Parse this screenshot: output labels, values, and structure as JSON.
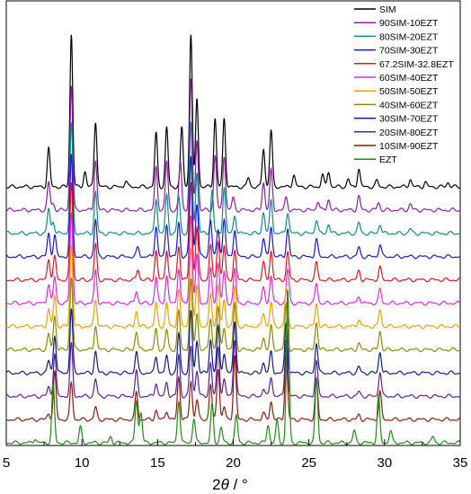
{
  "chart_data": {
    "type": "line",
    "title": "",
    "xlabel_main": "2",
    "xlabel_theta": "θ",
    "xlabel_rest": " / °",
    "ylabel": "",
    "xlim": [
      5,
      35
    ],
    "xticks": [
      "5",
      "10",
      "15",
      "20",
      "25",
      "30",
      "35"
    ],
    "grid": false,
    "legend_position": "top-right",
    "stacked_offset": true,
    "series": [
      {
        "name": "SIM",
        "color": "#000000",
        "peaks": [
          [
            7.8,
            25
          ],
          [
            9.3,
            100
          ],
          [
            10.2,
            10
          ],
          [
            10.9,
            43
          ],
          [
            12.9,
            4
          ],
          [
            14.9,
            35
          ],
          [
            15.6,
            39
          ],
          [
            16.6,
            39
          ],
          [
            17.2,
            100
          ],
          [
            17.6,
            58
          ],
          [
            18.8,
            45
          ],
          [
            19.4,
            45
          ],
          [
            21.0,
            6
          ],
          [
            22.0,
            25
          ],
          [
            22.5,
            37
          ],
          [
            24.0,
            8
          ],
          [
            25.9,
            8
          ],
          [
            26.3,
            10
          ],
          [
            27.6,
            5
          ],
          [
            28.3,
            12
          ],
          [
            29.5,
            4
          ],
          [
            31.7,
            5
          ],
          [
            32.7,
            3
          ],
          [
            34.2,
            3
          ]
        ]
      },
      {
        "name": "90SIM-10EZT",
        "color": "#8b1fa0",
        "peaks": [
          [
            7.8,
            18
          ],
          [
            8.1,
            4
          ],
          [
            9.3,
            82
          ],
          [
            10.9,
            33
          ],
          [
            14.9,
            28
          ],
          [
            15.6,
            32
          ],
          [
            16.5,
            32
          ],
          [
            17.2,
            85
          ],
          [
            17.6,
            46
          ],
          [
            18.8,
            36
          ],
          [
            19.4,
            36
          ],
          [
            20.0,
            8
          ],
          [
            22.0,
            18
          ],
          [
            22.5,
            26
          ],
          [
            23.5,
            8
          ],
          [
            25.6,
            6
          ],
          [
            26.3,
            7
          ],
          [
            28.3,
            9
          ],
          [
            29.6,
            5
          ],
          [
            31.7,
            4
          ]
        ]
      },
      {
        "name": "80SIM-20EZT",
        "color": "#0f8a8a",
        "peaks": [
          [
            7.8,
            16
          ],
          [
            8.1,
            8
          ],
          [
            9.3,
            72
          ],
          [
            10.9,
            27
          ],
          [
            14.9,
            23
          ],
          [
            15.6,
            25
          ],
          [
            16.4,
            24
          ],
          [
            17.2,
            72
          ],
          [
            17.6,
            40
          ],
          [
            18.6,
            28
          ],
          [
            19.4,
            30
          ],
          [
            20.1,
            12
          ],
          [
            22.0,
            14
          ],
          [
            22.5,
            22
          ],
          [
            23.6,
            14
          ],
          [
            25.5,
            9
          ],
          [
            26.3,
            6
          ],
          [
            28.3,
            7
          ],
          [
            29.7,
            6
          ],
          [
            31.7,
            3
          ]
        ]
      },
      {
        "name": "70SIM-30EZT",
        "color": "#1a14d8",
        "peaks": [
          [
            7.8,
            15
          ],
          [
            8.2,
            14
          ],
          [
            9.3,
            66
          ],
          [
            10.9,
            24
          ],
          [
            13.7,
            6
          ],
          [
            14.9,
            20
          ],
          [
            15.6,
            21
          ],
          [
            16.4,
            22
          ],
          [
            17.2,
            66
          ],
          [
            17.6,
            35
          ],
          [
            18.5,
            24
          ],
          [
            19.0,
            18
          ],
          [
            19.4,
            24
          ],
          [
            20.1,
            18
          ],
          [
            22.0,
            12
          ],
          [
            22.5,
            20
          ],
          [
            23.6,
            18
          ],
          [
            25.5,
            11
          ],
          [
            28.3,
            6
          ],
          [
            29.7,
            8
          ]
        ]
      },
      {
        "name": "67.2SIM-32.8EZT",
        "color": "#e8141e",
        "peaks": [
          [
            7.8,
            14
          ],
          [
            8.2,
            15
          ],
          [
            9.3,
            64
          ],
          [
            10.9,
            23
          ],
          [
            13.7,
            7
          ],
          [
            14.9,
            19
          ],
          [
            15.6,
            20
          ],
          [
            16.4,
            22
          ],
          [
            17.2,
            64
          ],
          [
            17.6,
            34
          ],
          [
            18.5,
            23
          ],
          [
            19.0,
            26
          ],
          [
            19.4,
            22
          ],
          [
            20.1,
            19
          ],
          [
            22.0,
            11
          ],
          [
            22.5,
            19
          ],
          [
            23.6,
            18
          ],
          [
            25.5,
            11
          ],
          [
            28.3,
            6
          ],
          [
            29.7,
            8
          ]
        ]
      },
      {
        "name": "60SIM-40EZT",
        "color": "#e226e8",
        "peaks": [
          [
            7.8,
            13
          ],
          [
            8.2,
            17
          ],
          [
            9.3,
            60
          ],
          [
            10.9,
            21
          ],
          [
            13.6,
            8
          ],
          [
            14.9,
            17
          ],
          [
            15.6,
            18
          ],
          [
            16.4,
            23
          ],
          [
            17.2,
            58
          ],
          [
            17.6,
            31
          ],
          [
            18.5,
            22
          ],
          [
            19.0,
            26
          ],
          [
            19.4,
            20
          ],
          [
            20.1,
            22
          ],
          [
            22.0,
            10
          ],
          [
            22.5,
            18
          ],
          [
            23.6,
            22
          ],
          [
            25.5,
            13
          ],
          [
            28.3,
            5
          ],
          [
            29.7,
            9
          ]
        ]
      },
      {
        "name": "50SIM-50EZT",
        "color": "#f5a000",
        "peaks": [
          [
            7.8,
            11
          ],
          [
            8.2,
            20
          ],
          [
            9.3,
            54
          ],
          [
            10.9,
            18
          ],
          [
            13.6,
            10
          ],
          [
            14.9,
            15
          ],
          [
            15.6,
            15
          ],
          [
            16.4,
            24
          ],
          [
            17.2,
            52
          ],
          [
            17.6,
            27
          ],
          [
            18.5,
            21
          ],
          [
            19.0,
            27
          ],
          [
            19.4,
            17
          ],
          [
            20.1,
            26
          ],
          [
            22.0,
            9
          ],
          [
            22.5,
            16
          ],
          [
            23.5,
            25
          ],
          [
            25.5,
            15
          ],
          [
            28.3,
            5
          ],
          [
            29.7,
            11
          ]
        ]
      },
      {
        "name": "40SIM-60EZT",
        "color": "#8a8a00",
        "peaks": [
          [
            7.8,
            10
          ],
          [
            8.2,
            22
          ],
          [
            9.3,
            48
          ],
          [
            10.9,
            16
          ],
          [
            13.6,
            12
          ],
          [
            14.9,
            13
          ],
          [
            15.6,
            13
          ],
          [
            16.4,
            25
          ],
          [
            17.2,
            46
          ],
          [
            17.6,
            24
          ],
          [
            18.5,
            21
          ],
          [
            19.0,
            28
          ],
          [
            19.4,
            15
          ],
          [
            20.1,
            30
          ],
          [
            22.0,
            8
          ],
          [
            22.5,
            15
          ],
          [
            23.5,
            29
          ],
          [
            25.5,
            18
          ],
          [
            28.3,
            4
          ],
          [
            29.7,
            12
          ]
        ]
      },
      {
        "name": "30SIM-70EZT",
        "color": "#101a8c",
        "peaks": [
          [
            7.8,
            8
          ],
          [
            8.2,
            25
          ],
          [
            9.3,
            42
          ],
          [
            10.9,
            14
          ],
          [
            13.6,
            14
          ],
          [
            14.9,
            11
          ],
          [
            15.6,
            11
          ],
          [
            16.4,
            26
          ],
          [
            17.2,
            40
          ],
          [
            17.6,
            21
          ],
          [
            18.5,
            22
          ],
          [
            19.0,
            30
          ],
          [
            19.4,
            13
          ],
          [
            20.1,
            34
          ],
          [
            22.0,
            7
          ],
          [
            22.5,
            14
          ],
          [
            23.5,
            33
          ],
          [
            25.5,
            20
          ],
          [
            28.3,
            4
          ],
          [
            29.7,
            14
          ]
        ]
      },
      {
        "name": "20SIM-80EZT",
        "color": "#5a1ea0",
        "peaks": [
          [
            7.8,
            6
          ],
          [
            8.2,
            28
          ],
          [
            9.3,
            34
          ],
          [
            10.9,
            11
          ],
          [
            13.6,
            16
          ],
          [
            14.9,
            9
          ],
          [
            15.6,
            9
          ],
          [
            16.4,
            27
          ],
          [
            17.2,
            33
          ],
          [
            17.6,
            17
          ],
          [
            18.5,
            22
          ],
          [
            19.0,
            32
          ],
          [
            19.4,
            11
          ],
          [
            20.1,
            38
          ],
          [
            22.0,
            5
          ],
          [
            22.5,
            13
          ],
          [
            23.5,
            38
          ],
          [
            25.5,
            23
          ],
          [
            28.3,
            3
          ],
          [
            29.7,
            16
          ]
        ]
      },
      {
        "name": "10SIM-90EZT",
        "color": "#8c1c0c",
        "peaks": [
          [
            7.8,
            4
          ],
          [
            8.2,
            31
          ],
          [
            9.3,
            24
          ],
          [
            10.9,
            8
          ],
          [
            13.6,
            18
          ],
          [
            14.9,
            6
          ],
          [
            15.6,
            6
          ],
          [
            16.4,
            28
          ],
          [
            17.2,
            25
          ],
          [
            17.6,
            13
          ],
          [
            18.5,
            23
          ],
          [
            19.0,
            34
          ],
          [
            19.4,
            8
          ],
          [
            20.1,
            42
          ],
          [
            22.0,
            4
          ],
          [
            22.5,
            12
          ],
          [
            23.5,
            42
          ],
          [
            25.5,
            26
          ],
          [
            28.3,
            3
          ],
          [
            29.7,
            18
          ]
        ]
      },
      {
        "name": "EZT",
        "color": "#1e8c14",
        "peaks": [
          [
            6.9,
            3
          ],
          [
            8.1,
            38
          ],
          [
            9.9,
            10
          ],
          [
            11.9,
            4
          ],
          [
            13.6,
            28
          ],
          [
            13.9,
            20
          ],
          [
            16.4,
            28
          ],
          [
            17.4,
            16
          ],
          [
            18.6,
            25
          ],
          [
            19.2,
            10
          ],
          [
            20.2,
            18
          ],
          [
            22.3,
            12
          ],
          [
            22.9,
            14
          ],
          [
            23.6,
            100
          ],
          [
            25.5,
            42
          ],
          [
            28.0,
            8
          ],
          [
            29.6,
            30
          ],
          [
            30.4,
            8
          ],
          [
            33.2,
            4
          ]
        ]
      }
    ]
  }
}
